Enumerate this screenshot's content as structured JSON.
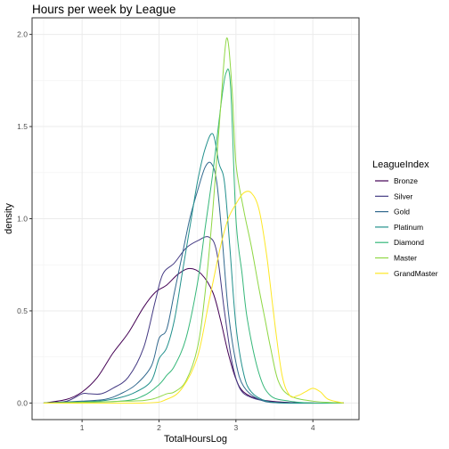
{
  "chart_data": {
    "type": "line",
    "title": "Hours per week by League",
    "xlabel": "TotalHoursLog",
    "ylabel": "density",
    "xlim": [
      0.35,
      4.6
    ],
    "ylim": [
      -0.09,
      2.09
    ],
    "x_ticks": [
      1,
      2,
      3,
      4
    ],
    "x_tick_labels": [
      "1",
      "2",
      "3",
      "4"
    ],
    "y_ticks": [
      0,
      0.5,
      1,
      1.5,
      2
    ],
    "y_tick_labels": [
      "0.0",
      "0.5",
      "1.0",
      "1.5",
      "2.0"
    ],
    "grid": true,
    "legend": {
      "title": "LeagueIndex",
      "position": "right"
    },
    "series": [
      {
        "name": "Bronze",
        "color": "#440154",
        "points": [
          [
            0.5,
            0.0
          ],
          [
            0.8,
            0.02
          ],
          [
            1.0,
            0.06
          ],
          [
            1.2,
            0.14
          ],
          [
            1.4,
            0.27
          ],
          [
            1.6,
            0.38
          ],
          [
            1.8,
            0.52
          ],
          [
            1.95,
            0.6
          ],
          [
            2.1,
            0.64
          ],
          [
            2.25,
            0.7
          ],
          [
            2.4,
            0.73
          ],
          [
            2.55,
            0.7
          ],
          [
            2.7,
            0.6
          ],
          [
            2.8,
            0.45
          ],
          [
            2.9,
            0.27
          ],
          [
            3.0,
            0.13
          ],
          [
            3.1,
            0.06
          ],
          [
            3.3,
            0.02
          ],
          [
            3.6,
            0.005
          ],
          [
            4.0,
            0.0
          ],
          [
            4.4,
            0.0
          ]
        ]
      },
      {
        "name": "Silver",
        "color": "#443A83",
        "points": [
          [
            0.5,
            0.0
          ],
          [
            0.8,
            0.01
          ],
          [
            1.0,
            0.05
          ],
          [
            1.1,
            0.05
          ],
          [
            1.25,
            0.05
          ],
          [
            1.4,
            0.08
          ],
          [
            1.6,
            0.14
          ],
          [
            1.8,
            0.3
          ],
          [
            1.95,
            0.55
          ],
          [
            2.05,
            0.7
          ],
          [
            2.2,
            0.76
          ],
          [
            2.35,
            0.84
          ],
          [
            2.5,
            0.88
          ],
          [
            2.65,
            0.9
          ],
          [
            2.75,
            0.82
          ],
          [
            2.85,
            0.5
          ],
          [
            2.95,
            0.22
          ],
          [
            3.05,
            0.08
          ],
          [
            3.2,
            0.03
          ],
          [
            3.5,
            0.005
          ],
          [
            4.0,
            0.0
          ],
          [
            4.4,
            0.0
          ]
        ]
      },
      {
        "name": "Gold",
        "color": "#31688E",
        "points": [
          [
            0.5,
            0.0
          ],
          [
            1.0,
            0.01
          ],
          [
            1.3,
            0.02
          ],
          [
            1.5,
            0.05
          ],
          [
            1.7,
            0.1
          ],
          [
            1.9,
            0.2
          ],
          [
            2.0,
            0.35
          ],
          [
            2.1,
            0.4
          ],
          [
            2.2,
            0.6
          ],
          [
            2.3,
            0.8
          ],
          [
            2.4,
            1.0
          ],
          [
            2.5,
            1.15
          ],
          [
            2.6,
            1.28
          ],
          [
            2.68,
            1.3
          ],
          [
            2.75,
            1.2
          ],
          [
            2.82,
            0.9
          ],
          [
            2.9,
            0.5
          ],
          [
            3.0,
            0.22
          ],
          [
            3.1,
            0.09
          ],
          [
            3.3,
            0.02
          ],
          [
            3.6,
            0.0
          ],
          [
            4.4,
            0.0
          ]
        ]
      },
      {
        "name": "Platinum",
        "color": "#21908C",
        "points": [
          [
            0.5,
            0.0
          ],
          [
            1.2,
            0.01
          ],
          [
            1.5,
            0.03
          ],
          [
            1.7,
            0.06
          ],
          [
            1.9,
            0.12
          ],
          [
            2.0,
            0.24
          ],
          [
            2.1,
            0.3
          ],
          [
            2.2,
            0.45
          ],
          [
            2.3,
            0.7
          ],
          [
            2.4,
            0.95
          ],
          [
            2.5,
            1.2
          ],
          [
            2.6,
            1.38
          ],
          [
            2.7,
            1.46
          ],
          [
            2.78,
            1.3
          ],
          [
            2.85,
            1.2
          ],
          [
            2.92,
            0.85
          ],
          [
            3.0,
            0.42
          ],
          [
            3.1,
            0.16
          ],
          [
            3.2,
            0.06
          ],
          [
            3.4,
            0.01
          ],
          [
            3.7,
            0.0
          ],
          [
            4.4,
            0.0
          ]
        ]
      },
      {
        "name": "Diamond",
        "color": "#35B779",
        "points": [
          [
            0.5,
            0.0
          ],
          [
            1.5,
            0.01
          ],
          [
            1.8,
            0.04
          ],
          [
            2.0,
            0.1
          ],
          [
            2.1,
            0.15
          ],
          [
            2.2,
            0.2
          ],
          [
            2.35,
            0.35
          ],
          [
            2.5,
            0.65
          ],
          [
            2.6,
            0.95
          ],
          [
            2.7,
            1.25
          ],
          [
            2.8,
            1.6
          ],
          [
            2.87,
            1.79
          ],
          [
            2.93,
            1.72
          ],
          [
            3.0,
            1.0
          ],
          [
            3.08,
            0.7
          ],
          [
            3.15,
            0.45
          ],
          [
            3.3,
            0.16
          ],
          [
            3.45,
            0.04
          ],
          [
            3.7,
            0.01
          ],
          [
            4.0,
            0.0
          ],
          [
            4.4,
            0.0
          ]
        ]
      },
      {
        "name": "Master",
        "color": "#8FD744",
        "points": [
          [
            0.5,
            0.0
          ],
          [
            1.6,
            0.01
          ],
          [
            1.9,
            0.02
          ],
          [
            2.1,
            0.05
          ],
          [
            2.2,
            0.06
          ],
          [
            2.35,
            0.12
          ],
          [
            2.5,
            0.3
          ],
          [
            2.6,
            0.6
          ],
          [
            2.7,
            1.05
          ],
          [
            2.8,
            1.6
          ],
          [
            2.88,
            1.98
          ],
          [
            2.95,
            1.7
          ],
          [
            3.0,
            1.3
          ],
          [
            3.1,
            1.05
          ],
          [
            3.2,
            0.85
          ],
          [
            3.3,
            0.62
          ],
          [
            3.38,
            0.45
          ],
          [
            3.45,
            0.3
          ],
          [
            3.55,
            0.12
          ],
          [
            3.7,
            0.04
          ],
          [
            4.0,
            0.01
          ],
          [
            4.4,
            0.0
          ]
        ]
      },
      {
        "name": "GrandMaster",
        "color": "#FDE725",
        "points": [
          [
            0.5,
            0.0
          ],
          [
            1.8,
            0.0
          ],
          [
            2.1,
            0.02
          ],
          [
            2.3,
            0.08
          ],
          [
            2.5,
            0.25
          ],
          [
            2.65,
            0.55
          ],
          [
            2.8,
            0.85
          ],
          [
            2.9,
            1.0
          ],
          [
            3.0,
            1.08
          ],
          [
            3.1,
            1.14
          ],
          [
            3.2,
            1.14
          ],
          [
            3.3,
            1.05
          ],
          [
            3.4,
            0.8
          ],
          [
            3.5,
            0.45
          ],
          [
            3.6,
            0.15
          ],
          [
            3.7,
            0.04
          ],
          [
            3.8,
            0.04
          ],
          [
            3.9,
            0.06
          ],
          [
            4.0,
            0.08
          ],
          [
            4.1,
            0.06
          ],
          [
            4.2,
            0.02
          ],
          [
            4.4,
            0.0
          ]
        ]
      }
    ]
  }
}
